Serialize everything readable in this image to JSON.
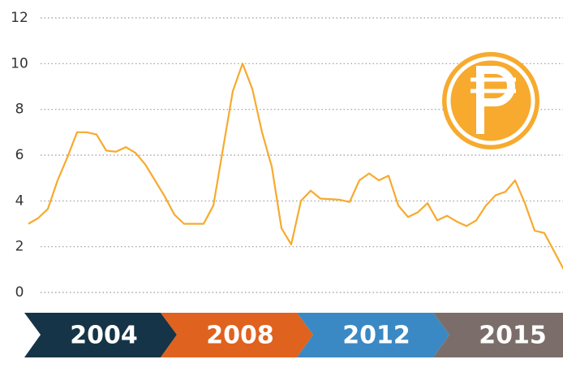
{
  "chart_data": {
    "type": "line",
    "periods": [
      "2004",
      "2008",
      "2012",
      "2015"
    ],
    "period_colors": [
      "#163447",
      "#e0621f",
      "#3a89c4",
      "#7b6e6a"
    ],
    "series": [
      {
        "color": "#f7aa2e",
        "values": [
          3.0,
          3.25,
          3.65,
          4.9,
          5.9,
          7.0,
          7.0,
          6.9,
          6.2,
          6.15,
          6.35,
          6.1,
          5.6,
          4.9,
          4.2,
          3.4,
          3.0,
          3.0,
          3.0,
          3.8,
          6.3,
          8.8,
          10.0,
          8.9,
          7.0,
          5.5,
          2.8,
          2.1,
          4.0,
          4.45,
          4.1,
          4.08,
          4.05,
          3.95,
          4.9,
          5.2,
          4.9,
          5.1,
          3.8,
          3.3,
          3.5,
          3.9,
          3.15,
          3.35,
          3.1,
          2.9,
          3.15,
          3.8,
          4.25,
          4.4,
          4.9,
          3.9,
          2.7,
          2.6,
          1.8,
          1.0
        ]
      }
    ],
    "ylim": [
      0,
      12
    ],
    "yticks": [
      0,
      2,
      4,
      6,
      8,
      10,
      12
    ],
    "grid": true
  }
}
